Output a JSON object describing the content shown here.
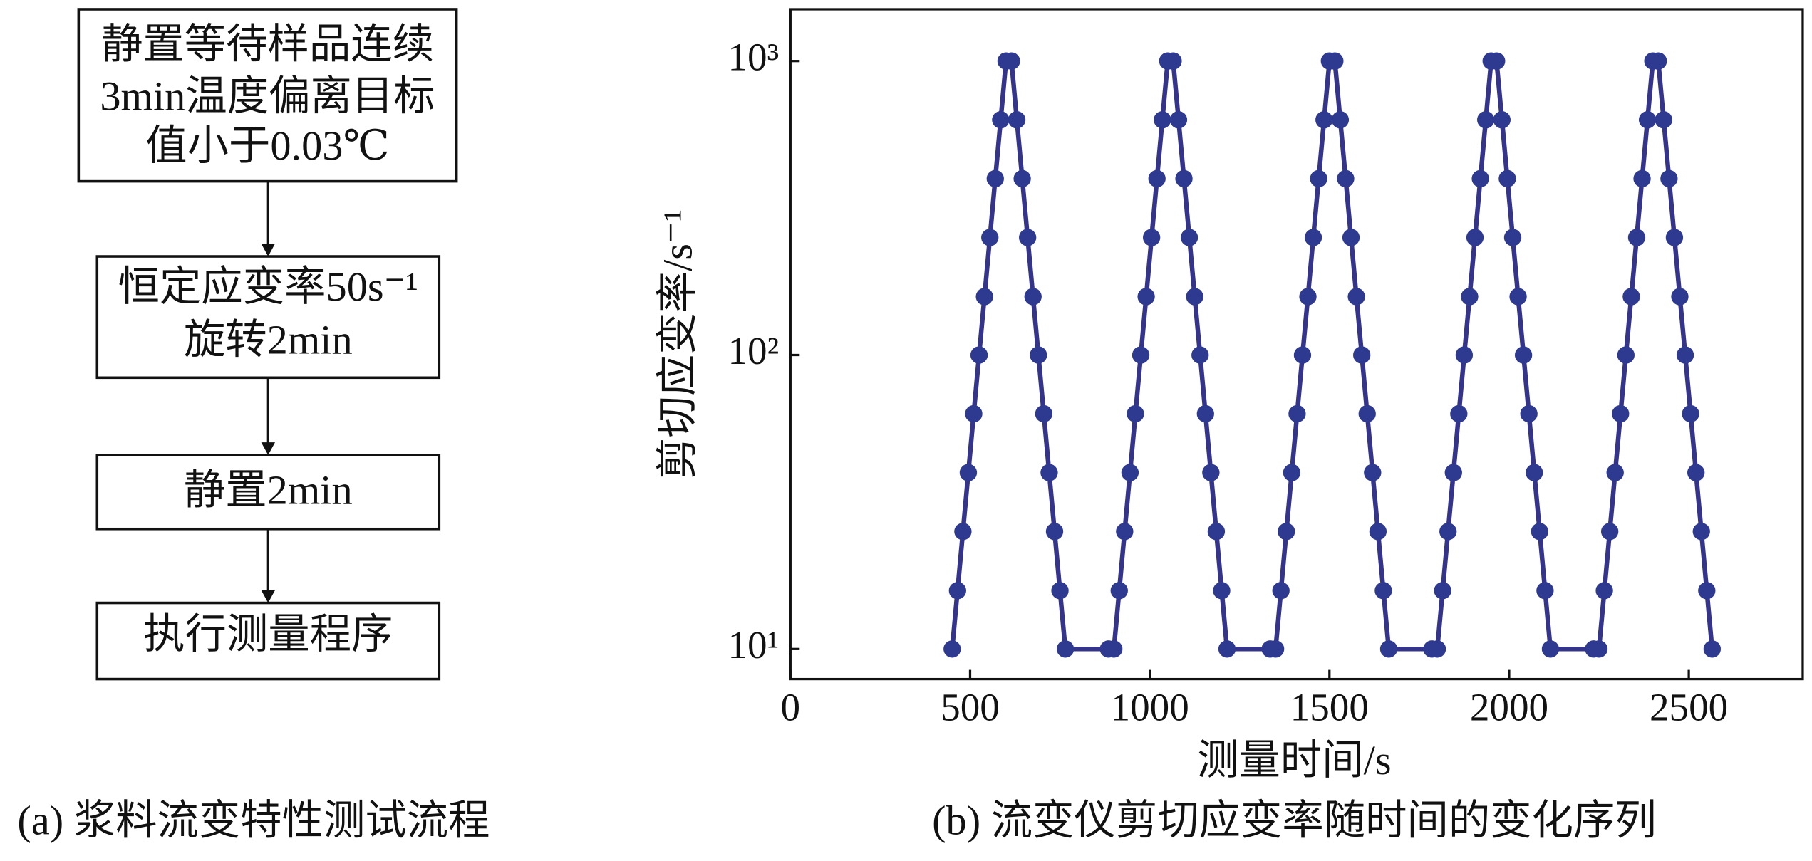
{
  "flowchart": {
    "nodes": [
      {
        "lines": [
          "静置等待样品连续",
          "3min温度偏离目标",
          "值小于0.03℃"
        ]
      },
      {
        "lines": [
          "恒定应变率50s⁻¹",
          "旋转2min"
        ]
      },
      {
        "lines": [
          "静置2min"
        ]
      },
      {
        "lines": [
          "执行测量程序"
        ]
      }
    ],
    "caption": "(a) 浆料流变特性测试流程"
  },
  "chart_data": {
    "type": "line",
    "caption": "(b) 流变仪剪切应变率随时间的变化序列",
    "x_label": "测量时间/s",
    "y_label": "剪切应变率/s⁻¹",
    "log_y": true,
    "xlim": [
      0,
      2817
    ],
    "ylim": [
      7.9,
      1500
    ],
    "xticks": [
      0,
      500,
      1000,
      1500,
      2000,
      2500
    ],
    "yticks": [
      {
        "value": 10,
        "label": "10¹"
      },
      {
        "value": 100,
        "label": "10²"
      },
      {
        "value": 1000,
        "label": "10³"
      }
    ],
    "x": [
      450,
      465,
      480,
      495,
      510,
      525,
      540,
      555,
      570,
      585,
      600,
      615,
      630,
      645,
      660,
      675,
      690,
      705,
      720,
      735,
      750,
      765,
      885,
      900,
      915,
      930,
      945,
      960,
      975,
      990,
      1005,
      1020,
      1035,
      1050,
      1065,
      1080,
      1095,
      1110,
      1125,
      1140,
      1155,
      1170,
      1185,
      1200,
      1215,
      1335,
      1350,
      1365,
      1380,
      1395,
      1410,
      1425,
      1440,
      1455,
      1470,
      1485,
      1500,
      1515,
      1530,
      1545,
      1560,
      1575,
      1590,
      1605,
      1620,
      1635,
      1650,
      1665,
      1785,
      1800,
      1815,
      1830,
      1845,
      1860,
      1875,
      1890,
      1905,
      1920,
      1935,
      1950,
      1965,
      1980,
      1995,
      2010,
      2025,
      2040,
      2055,
      2070,
      2085,
      2100,
      2115,
      2235,
      2250,
      2265,
      2280,
      2295,
      2310,
      2325,
      2340,
      2355,
      2370,
      2385,
      2400,
      2415,
      2430,
      2445,
      2460,
      2475,
      2490,
      2505,
      2520,
      2535,
      2550,
      2565
    ],
    "series": [
      {
        "name": "剪切应变率",
        "color": "#34358a",
        "marker_color": "#2e3990",
        "values": [
          10,
          15.8,
          25.1,
          39.8,
          63.1,
          100,
          158,
          251,
          398,
          631,
          1000,
          1000,
          631,
          398,
          251,
          158,
          100,
          63.1,
          39.8,
          25.1,
          15.8,
          10,
          10,
          10,
          15.8,
          25.1,
          39.8,
          63.1,
          100,
          158,
          251,
          398,
          631,
          1000,
          1000,
          631,
          398,
          251,
          158,
          100,
          63.1,
          39.8,
          25.1,
          15.8,
          10,
          10,
          10,
          15.8,
          25.1,
          39.8,
          63.1,
          100,
          158,
          251,
          398,
          631,
          1000,
          1000,
          631,
          398,
          251,
          158,
          100,
          63.1,
          39.8,
          25.1,
          15.8,
          10,
          10,
          10,
          15.8,
          25.1,
          39.8,
          63.1,
          100,
          158,
          251,
          398,
          631,
          1000,
          1000,
          631,
          398,
          251,
          158,
          100,
          63.1,
          39.8,
          25.1,
          15.8,
          10,
          10,
          10,
          15.8,
          25.1,
          39.8,
          63.1,
          100,
          158,
          251,
          398,
          631,
          1000,
          1000,
          631,
          398,
          251,
          158,
          100,
          63.1,
          39.8,
          25.1,
          15.8,
          10
        ]
      }
    ]
  }
}
